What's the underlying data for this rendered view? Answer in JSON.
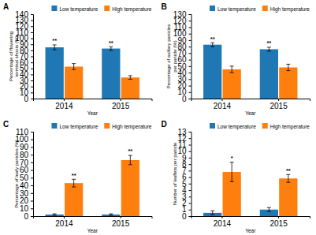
{
  "chart_data": [
    {
      "type": "bar",
      "title": "A",
      "ylabel": "Percentage of flowering\nterminal shoots (%)",
      "xlabel": "Year",
      "categories": [
        "2014",
        "2015"
      ],
      "series": [
        {
          "name": "Low temperature",
          "color": "#1f77b4",
          "values": [
            85,
            83
          ],
          "errors": [
            4,
            3
          ],
          "sig_labels": [
            "**",
            "**"
          ]
        },
        {
          "name": "High temperature",
          "color": "#ff7f0e",
          "values": [
            53,
            35
          ],
          "errors": [
            5,
            3
          ],
          "sig_labels": [
            null,
            null
          ]
        }
      ],
      "ylim": [
        0,
        140
      ],
      "yticks": [
        0,
        10,
        20,
        30,
        40,
        50,
        60,
        70,
        80,
        90,
        100,
        110,
        120,
        130,
        140
      ],
      "legend": "upper right"
    },
    {
      "type": "bar",
      "title": "B",
      "ylabel": "Percentage of axillary panicles\nper panicle (%)",
      "xlabel": "Year",
      "categories": [
        "2014",
        "2015"
      ],
      "series": [
        {
          "name": "Low temperature",
          "color": "#1f77b4",
          "values": [
            83,
            76
          ],
          "errors": [
            3,
            3
          ],
          "sig_labels": [
            "**",
            "**"
          ]
        },
        {
          "name": "High temperature",
          "color": "#ff7f0e",
          "values": [
            45,
            48
          ],
          "errors": [
            5,
            5
          ],
          "sig_labels": [
            null,
            null
          ]
        }
      ],
      "ylim": [
        0,
        130
      ],
      "yticks": [
        0,
        10,
        20,
        30,
        40,
        50,
        60,
        70,
        80,
        90,
        100,
        110,
        120,
        130
      ],
      "legend": "upper right"
    },
    {
      "type": "bar",
      "title": "C",
      "ylabel": "Percentage of leafy panicles (%)",
      "xlabel": "Year",
      "categories": [
        "2014",
        "2015"
      ],
      "series": [
        {
          "name": "Low temperature",
          "color": "#1f77b4",
          "values": [
            2,
            2
          ],
          "errors": [
            1,
            1
          ],
          "sig_labels": [
            null,
            null
          ]
        },
        {
          "name": "High temperature",
          "color": "#ff7f0e",
          "values": [
            43,
            73
          ],
          "errors": [
            5,
            6
          ],
          "sig_labels": [
            "**",
            "**"
          ]
        }
      ],
      "ylim": [
        0,
        110
      ],
      "yticks": [
        0,
        10,
        20,
        30,
        40,
        50,
        60,
        70,
        80,
        90,
        100,
        110
      ],
      "legend": "upper right"
    },
    {
      "type": "bar",
      "title": "D",
      "ylabel": "Number of leaflets per panicle",
      "xlabel": "Year",
      "categories": [
        "2014",
        "2015"
      ],
      "series": [
        {
          "name": "Low temperature",
          "color": "#1f77b4",
          "values": [
            0.5,
            1.0
          ],
          "errors": [
            0.3,
            0.3
          ],
          "sig_labels": [
            null,
            null
          ]
        },
        {
          "name": "High temperature",
          "color": "#ff7f0e",
          "values": [
            6.8,
            5.8
          ],
          "errors": [
            1.5,
            0.6
          ],
          "sig_labels": [
            "*",
            "**"
          ]
        }
      ],
      "ylim": [
        0,
        13
      ],
      "yticks": [
        0,
        1,
        2,
        3,
        4,
        5,
        6,
        7,
        8,
        9,
        10,
        11,
        12,
        13
      ],
      "legend": "upper right"
    }
  ]
}
